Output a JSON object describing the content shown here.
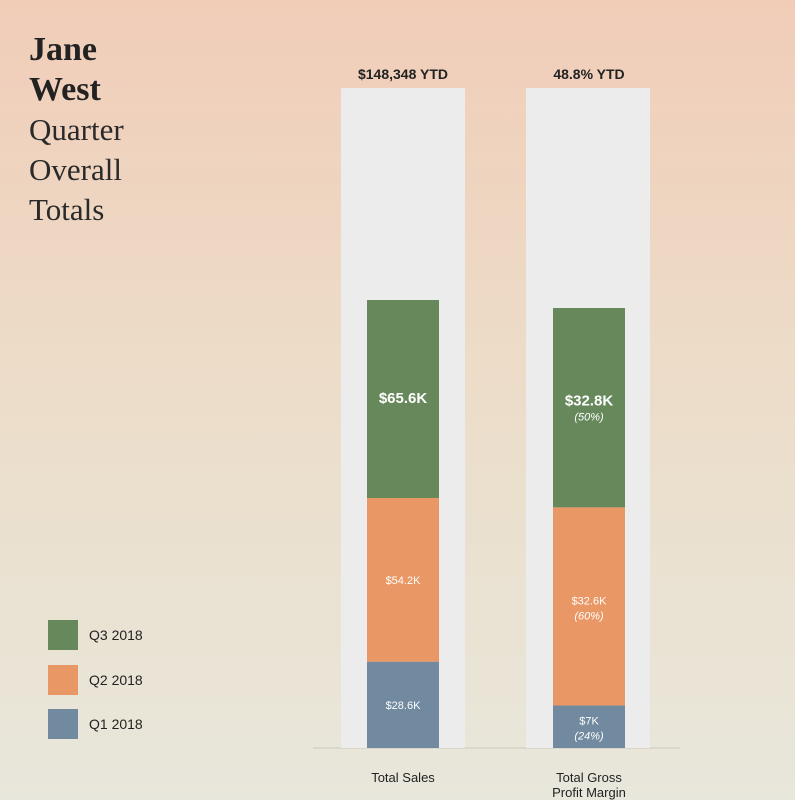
{
  "title": {
    "name_line1": "Jane",
    "name_line2": "West",
    "sub_line1": "Quarter",
    "sub_line2": "Overall",
    "sub_line3": "Totals"
  },
  "colors": {
    "Q3 2018": "#66885a",
    "Q2 2018": "#e99764",
    "Q1 2018": "#718a9f",
    "panel": "#ececec"
  },
  "chart_data": {
    "type": "bar",
    "stacked": true,
    "categories": [
      "Total Sales",
      "Total Gross Profit Margin"
    ],
    "category_labels": [
      [
        "Total Sales"
      ],
      [
        "Total Gross",
        "Profit Margin"
      ]
    ],
    "ytd_labels": [
      "$148,348 YTD",
      "48.8% YTD"
    ],
    "series": [
      {
        "name": "Q1 2018",
        "values": [
          28.6,
          7
        ],
        "labels": [
          "$28.6K",
          "$7K"
        ],
        "sublabels": [
          "",
          "(24%)"
        ]
      },
      {
        "name": "Q2 2018",
        "values": [
          54.2,
          32.6
        ],
        "labels": [
          "$54.2K",
          "$32.6K"
        ],
        "sublabels": [
          "",
          "(60%)"
        ]
      },
      {
        "name": "Q3 2018",
        "values": [
          65.6,
          32.8
        ],
        "labels": [
          "$65.6K",
          "$32.8K"
        ],
        "sublabels": [
          "",
          "(50%)"
        ]
      }
    ],
    "legend": [
      "Q3 2018",
      "Q2 2018",
      "Q1 2018"
    ],
    "legend_position": "bottom-left"
  }
}
